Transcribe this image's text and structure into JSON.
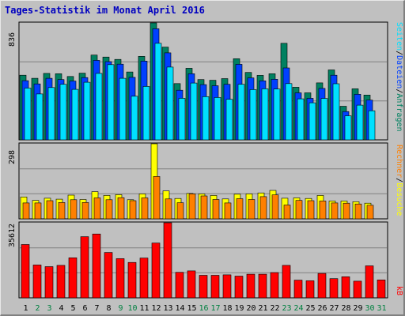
{
  "title": "Tages-Statistik im Monat April 2016",
  "colors": {
    "anfragen": "#008060",
    "dateien": "#0040ff",
    "seiten": "#00e0ff",
    "besuche": "#ffff00",
    "rechner": "#ff8000",
    "kb": "#ff0000",
    "weekday_label": "#000000",
    "weekend_label": "#008040"
  },
  "legend": {
    "anfragen": "Anfragen",
    "dateien": "Dateien",
    "seiten": "Seiten",
    "besuche": "Besuche",
    "rechner": "Rechner",
    "kb": "kB",
    "sep": "/"
  },
  "chart_data": [
    {
      "type": "bar",
      "panel": "top",
      "ylim": [
        0,
        836
      ],
      "y_tick": "836",
      "categories": [
        "1",
        "2",
        "3",
        "4",
        "5",
        "6",
        "7",
        "8",
        "9",
        "10",
        "11",
        "12",
        "13",
        "14",
        "15",
        "16",
        "17",
        "18",
        "19",
        "20",
        "21",
        "22",
        "23",
        "24",
        "25",
        "26",
        "27",
        "28",
        "29",
        "30",
        "31"
      ],
      "weekend_days": [
        "2",
        "3",
        "9",
        "10",
        "16",
        "17",
        "23",
        "24",
        "30",
        "31"
      ],
      "series": [
        {
          "name": "Anfragen",
          "key": "anfragen",
          "values": [
            462,
            440,
            475,
            473,
            453,
            477,
            606,
            592,
            575,
            485,
            597,
            836,
            663,
            402,
            512,
            431,
            426,
            438,
            580,
            482,
            461,
            473,
            690,
            376,
            336,
            407,
            500,
            240,
            365,
            320,
            0
          ]
        },
        {
          "name": "Dateien",
          "key": "dateien",
          "values": [
            423,
            400,
            440,
            431,
            420,
            445,
            568,
            559,
            541,
            447,
            563,
            794,
            622,
            355,
            473,
            395,
            387,
            397,
            540,
            443,
            422,
            433,
            514,
            336,
            297,
            368,
            462,
            202,
            326,
            284,
            0
          ]
        },
        {
          "name": "Seiten",
          "key": "seiten",
          "values": [
            370,
            328,
            374,
            397,
            361,
            412,
            475,
            538,
            440,
            312,
            382,
            690,
            520,
            297,
            406,
            309,
            303,
            290,
            397,
            359,
            365,
            363,
            402,
            293,
            265,
            296,
            401,
            172,
            248,
            208,
            0
          ]
        }
      ]
    },
    {
      "type": "bar",
      "panel": "middle",
      "ylim": [
        0,
        298
      ],
      "y_tick": "298",
      "categories": [
        "1",
        "2",
        "3",
        "4",
        "5",
        "6",
        "7",
        "8",
        "9",
        "10",
        "11",
        "12",
        "13",
        "14",
        "15",
        "16",
        "17",
        "18",
        "19",
        "20",
        "21",
        "22",
        "23",
        "24",
        "25",
        "26",
        "27",
        "28",
        "29",
        "30",
        "31"
      ],
      "series": [
        {
          "name": "Besuche",
          "key": "besuche",
          "values": [
            87,
            73,
            82,
            78,
            94,
            77,
            108,
            93,
            96,
            76,
            99,
            298,
            111,
            81,
            101,
            99,
            93,
            79,
            98,
            99,
            103,
            113,
            82,
            83,
            81,
            93,
            71,
            71,
            68,
            62,
            0
          ]
        },
        {
          "name": "Rechner",
          "key": "rechner",
          "values": [
            63,
            63,
            72,
            65,
            76,
            65,
            83,
            76,
            84,
            72,
            83,
            168,
            79,
            64,
            99,
            91,
            77,
            63,
            80,
            77,
            88,
            95,
            55,
            73,
            72,
            71,
            63,
            62,
            59,
            54,
            0
          ]
        }
      ]
    },
    {
      "type": "bar",
      "panel": "bottom",
      "ylim": [
        0,
        35612
      ],
      "y_tick": "35612",
      "categories": [
        "1",
        "2",
        "3",
        "4",
        "5",
        "6",
        "7",
        "8",
        "9",
        "10",
        "11",
        "12",
        "13",
        "14",
        "15",
        "16",
        "17",
        "18",
        "19",
        "20",
        "21",
        "22",
        "23",
        "24",
        "25",
        "26",
        "27",
        "28",
        "29",
        "30",
        "31"
      ],
      "series": [
        {
          "name": "kB",
          "key": "kb",
          "values": [
            25300,
            15600,
            14800,
            15400,
            19000,
            29000,
            30300,
            21500,
            18600,
            16800,
            18900,
            26000,
            35612,
            12100,
            12800,
            10700,
            10700,
            10900,
            10300,
            11200,
            11200,
            12000,
            15400,
            8400,
            8100,
            11600,
            9100,
            10000,
            7900,
            15200,
            8500
          ]
        }
      ]
    }
  ]
}
